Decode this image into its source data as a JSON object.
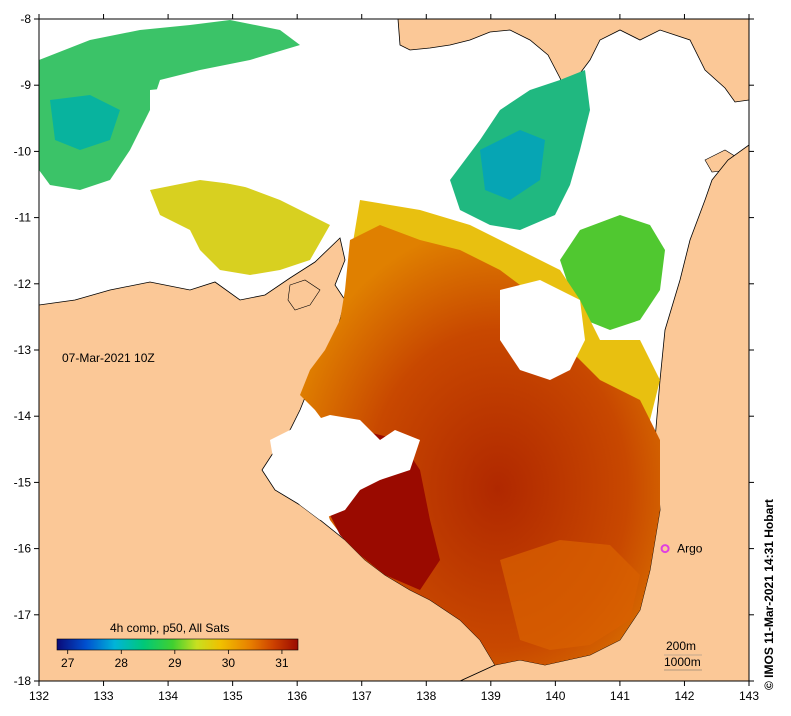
{
  "map": {
    "timestamp": "07-Mar-2021 10Z",
    "lon_ticks": [
      "132",
      "133",
      "134",
      "135",
      "136",
      "137",
      "138",
      "139",
      "140",
      "141",
      "142",
      "143"
    ],
    "lat_ticks": [
      "-8",
      "-9",
      "-10",
      "-11",
      "-12",
      "-13",
      "-14",
      "-15",
      "-16",
      "-17",
      "-18"
    ],
    "lon_range": [
      132,
      143
    ],
    "lat_range": [
      -8,
      -18
    ],
    "colors": {
      "land": "#fbc897",
      "no_data": "#ffffff",
      "coast": "#000000"
    }
  },
  "legend": {
    "title": "4h comp, p50, All Sats",
    "ticks": [
      "27",
      "28",
      "29",
      "30",
      "31"
    ],
    "range": [
      26.8,
      31.3
    ],
    "stops": [
      "#0a0a78",
      "#0050d0",
      "#00b4d8",
      "#00c878",
      "#40d030",
      "#c8e020",
      "#f0c000",
      "#e88000",
      "#cc4000",
      "#9a0a00"
    ]
  },
  "markers": [
    {
      "label": "Argo",
      "lon": 141.7,
      "lat": -16.0,
      "color": "#e040e0"
    }
  ],
  "isobaths": {
    "label_200": "200m",
    "label_1000": "1000m"
  },
  "credit": "© IMOS 11-Mar-2021 14:31 Hobart"
}
